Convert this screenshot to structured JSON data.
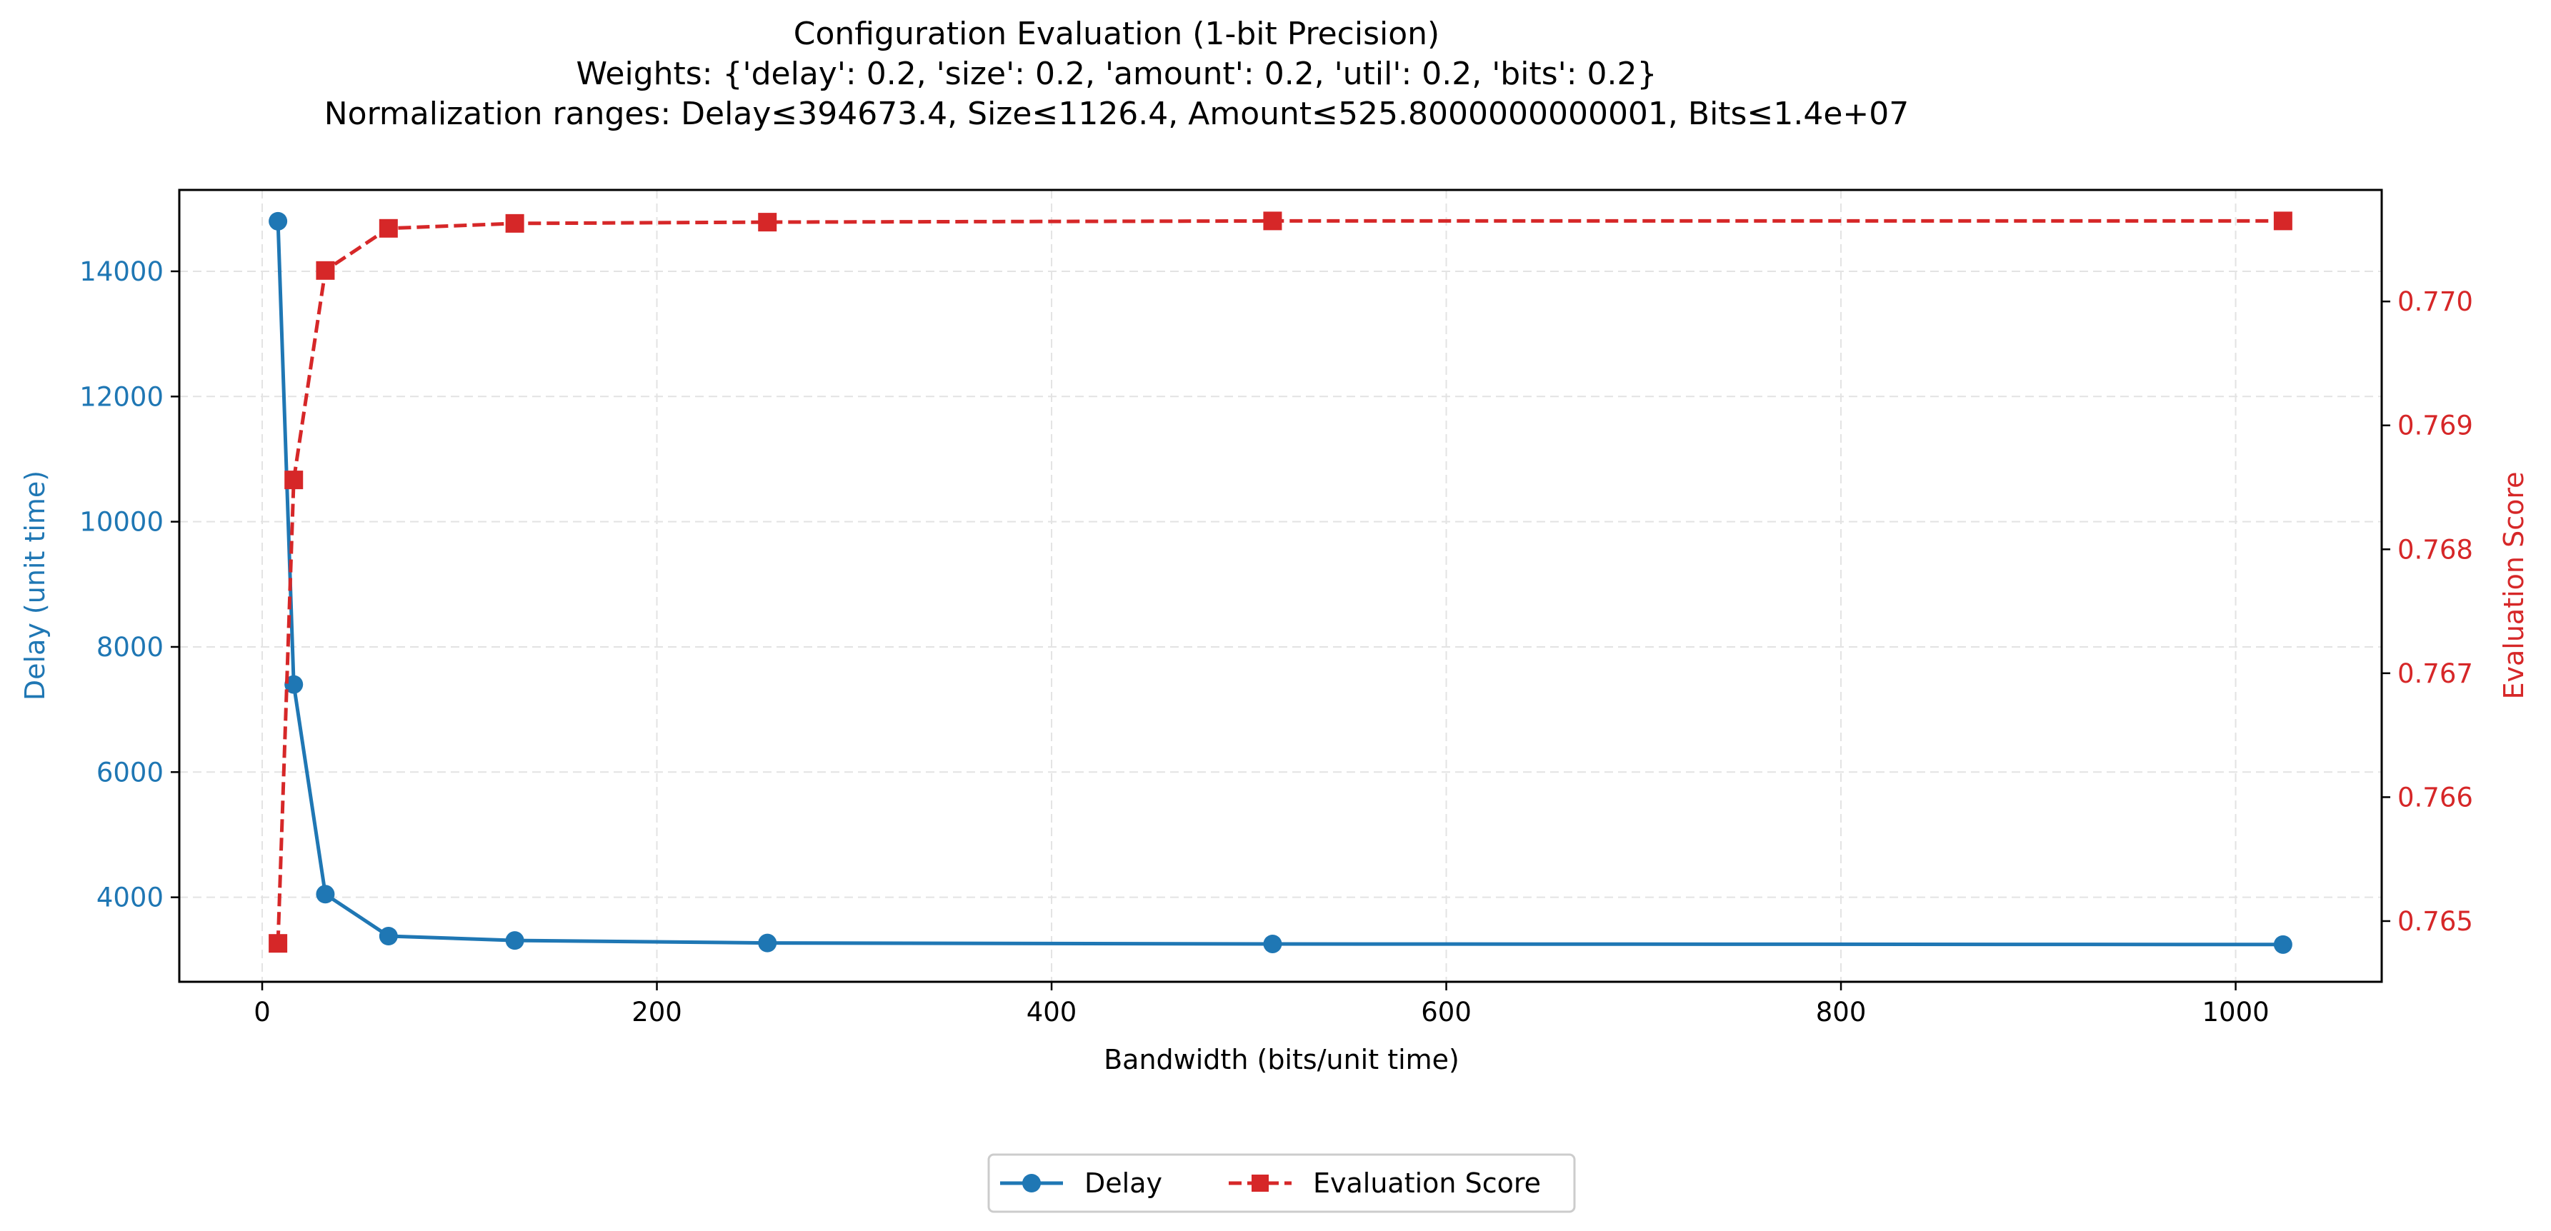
{
  "chart_data": {
    "type": "line",
    "title_lines": [
      "Configuration Evaluation (1-bit Precision)",
      "Weights: {'delay': 0.2, 'size': 0.2, 'amount': 0.2, 'util': 0.2, 'bits': 0.2}",
      "Normalization ranges: Delay≤394673.4, Size≤1126.4, Amount≤525.8000000000001, Bits≤1.4e+07"
    ],
    "xlabel": "Bandwidth (bits/unit time)",
    "ylabel_left": "Delay (unit time)",
    "ylabel_right": "Evaluation Score",
    "xlim": [
      -42,
      1074
    ],
    "ylim_left": [
      2650,
      15300
    ],
    "ylim_right": [
      0.76451,
      0.7709
    ],
    "x_ticks": [
      0,
      200,
      400,
      600,
      800,
      1000
    ],
    "x_tick_labels": [
      "0",
      "200",
      "400",
      "600",
      "800",
      "1000"
    ],
    "y_left_ticks": [
      4000,
      6000,
      8000,
      10000,
      12000,
      14000
    ],
    "y_left_tick_labels": [
      "4000",
      "6000",
      "8000",
      "10000",
      "12000",
      "14000"
    ],
    "y_right_ticks": [
      0.765,
      0.766,
      0.767,
      0.768,
      0.769,
      0.77
    ],
    "y_right_tick_labels": [
      "0.765",
      "0.766",
      "0.767",
      "0.768",
      "0.769",
      "0.770"
    ],
    "grid": true,
    "legend_position": "bottom-center",
    "x": [
      8,
      16,
      32,
      64,
      128,
      256,
      512,
      1024
    ],
    "series": [
      {
        "name": "Delay",
        "axis": "left",
        "color": "#1f77b4",
        "marker": "circle",
        "linestyle": "solid",
        "values": [
          14800,
          7400,
          4050,
          3380,
          3310,
          3270,
          3255,
          3245
        ]
      },
      {
        "name": "Evaluation Score",
        "axis": "right",
        "color": "#d62728",
        "marker": "square",
        "linestyle": "dashed",
        "values": [
          0.76482,
          0.76856,
          0.77025,
          0.77059,
          0.77063,
          0.77064,
          0.77065,
          0.77065
        ]
      }
    ]
  }
}
